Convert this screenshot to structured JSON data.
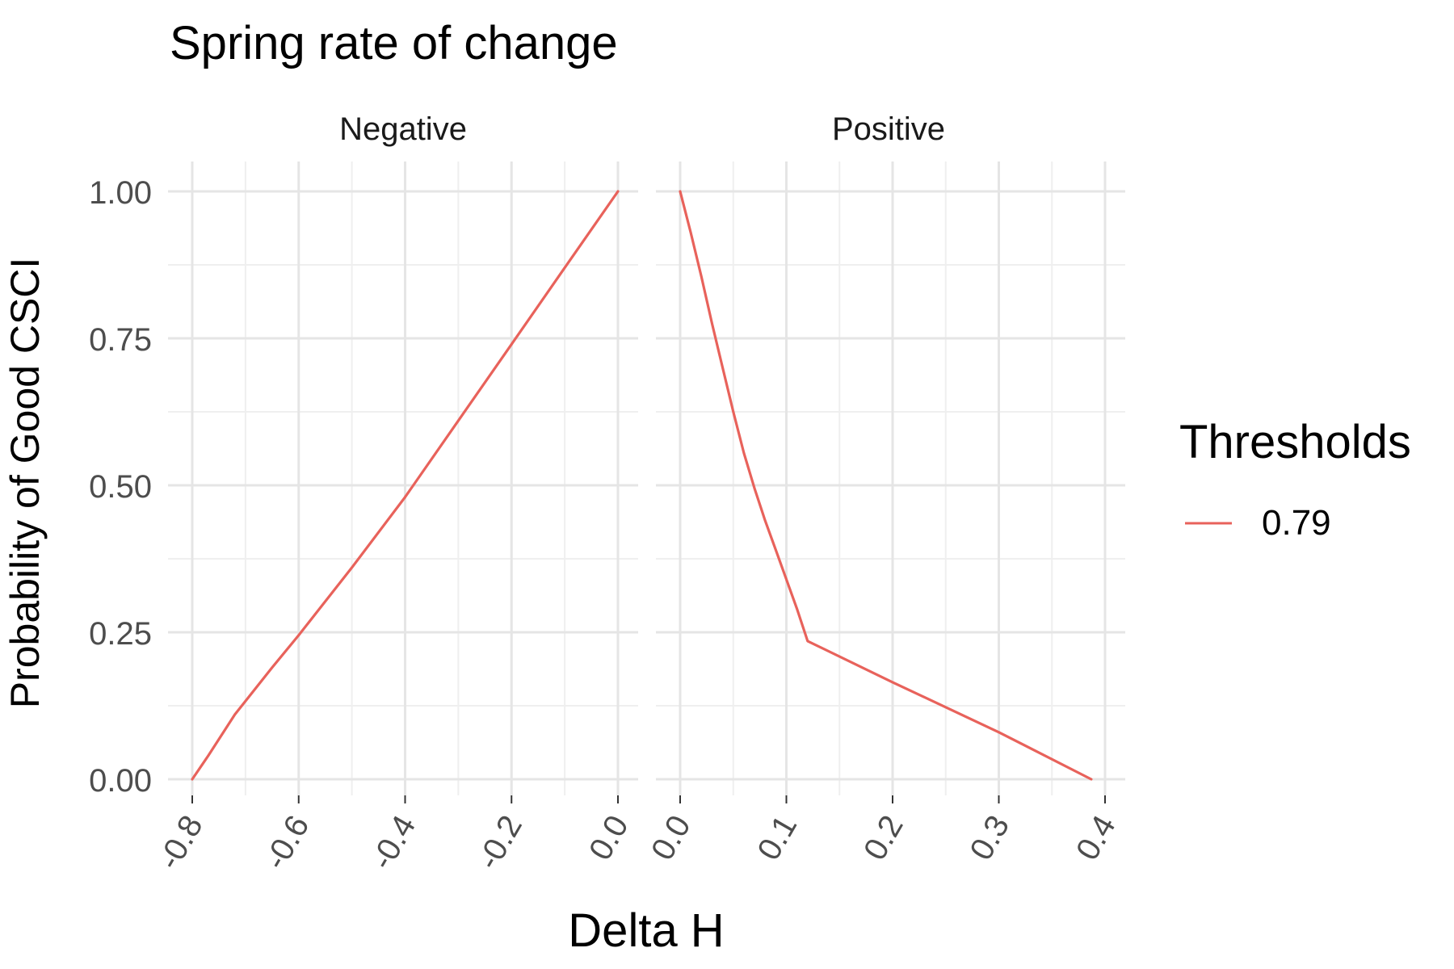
{
  "chart_data": {
    "type": "line",
    "title": "Spring rate of change",
    "xlabel": "Delta H",
    "ylabel": "Probability of Good CSCI",
    "legend": {
      "title": "Thresholds",
      "position": "right"
    },
    "colors": {
      "series": "#E8625B",
      "grid_major": "#E5E5E5",
      "grid_minor": "#EFEFEF",
      "tick_text": "#4D4D4D"
    },
    "ylim": [
      0,
      1
    ],
    "yticks": [
      "0.00",
      "0.25",
      "0.50",
      "0.75",
      "1.00"
    ],
    "panels": [
      {
        "label": "Negative",
        "xlim": [
          -0.8,
          0.0
        ],
        "xticks": [
          "-0.8",
          "-0.6",
          "-0.4",
          "-0.2",
          "0.0"
        ],
        "series": [
          {
            "name": "0.79",
            "x": [
              -0.8,
              -0.77,
              -0.72,
              -0.65,
              -0.6,
              -0.5,
              -0.4,
              -0.3,
              -0.2,
              -0.1,
              0.0
            ],
            "y": [
              0.0,
              0.04,
              0.11,
              0.19,
              0.245,
              0.36,
              0.48,
              0.61,
              0.74,
              0.87,
              1.0
            ]
          }
        ]
      },
      {
        "label": "Positive",
        "xlim": [
          0.0,
          0.4
        ],
        "xticks": [
          "0.0",
          "0.1",
          "0.2",
          "0.3",
          "0.4"
        ],
        "series": [
          {
            "name": "0.79",
            "x": [
              0.0,
              0.01,
              0.02,
              0.03,
              0.04,
              0.05,
              0.06,
              0.07,
              0.08,
              0.09,
              0.1,
              0.11,
              0.12,
              0.2,
              0.3,
              0.387
            ],
            "y": [
              1.0,
              0.93,
              0.855,
              0.775,
              0.7,
              0.625,
              0.555,
              0.495,
              0.44,
              0.39,
              0.34,
              0.29,
              0.235,
              0.165,
              0.08,
              0.0
            ]
          }
        ]
      }
    ]
  }
}
